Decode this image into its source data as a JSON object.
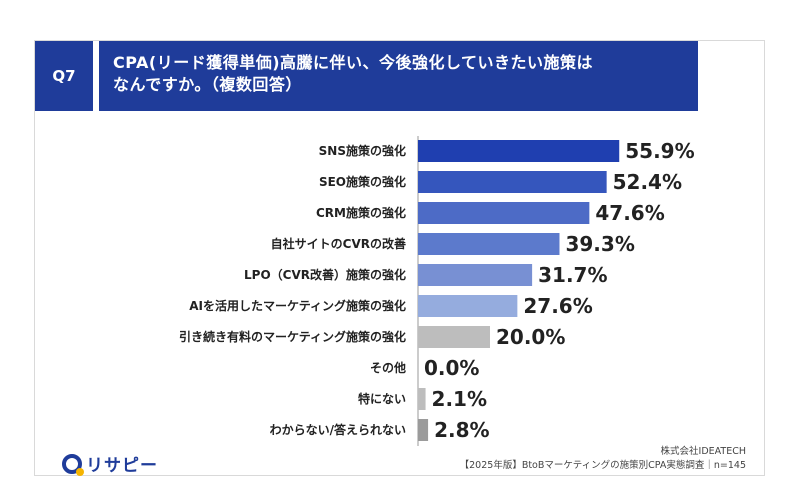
{
  "question": {
    "badge": "Q7",
    "line1": "CPA(リード獲得単価)高騰に伴い、今後強化していきたい施策は",
    "line2": "なんですか。（複数回答）"
  },
  "chart_data": {
    "type": "bar",
    "orientation": "horizontal",
    "categories": [
      "SNS施策の強化",
      "SEO施策の強化",
      "CRM施策の強化",
      "自社サイトのCVRの改善",
      "LPO（CVR改善）施策の強化",
      "AIを活用したマーケティング施策の強化",
      "引き続き有料のマーケティング施策の強化",
      "その他",
      "特にない",
      "わからない/答えられない"
    ],
    "values": [
      55.9,
      52.4,
      47.6,
      39.3,
      31.7,
      27.6,
      20.0,
      0.0,
      2.1,
      2.8
    ],
    "value_labels": [
      "55.9%",
      "52.4%",
      "47.6%",
      "39.3%",
      "31.7%",
      "27.6%",
      "20.0%",
      "0.0%",
      "2.1%",
      "2.8%"
    ],
    "colors": [
      "#1f3fb0",
      "#3556bd",
      "#4d6bc6",
      "#5c7acc",
      "#7890d3",
      "#95acde",
      "#bdbdbd",
      "#bdbdbd",
      "#bdbdbd",
      "#9b9b9b"
    ],
    "xlim": [
      0,
      100
    ]
  },
  "logo": {
    "text": "リサピー"
  },
  "source": {
    "company": "株式会社IDEATECH",
    "survey": "【2025年版】BtoBマーケティングの施策別CPA実態調査｜n=145"
  }
}
